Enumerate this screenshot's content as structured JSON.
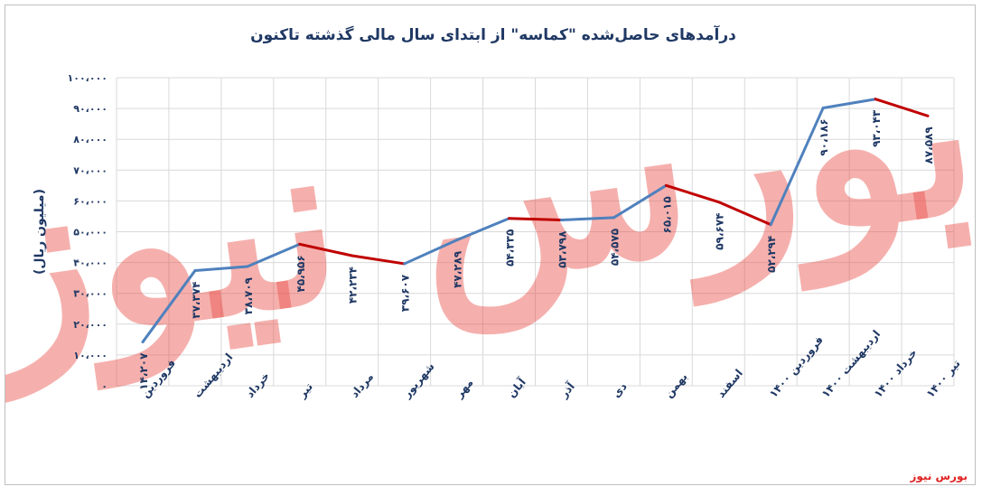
{
  "chart_data": {
    "type": "line",
    "title": "درآمدهای حاصل‌شده \"کماسه\" از ابتدای سال مالی گذشته تاکنون",
    "ylabel": "(میلیون ریال)",
    "xlabel": "",
    "ylim": [
      0,
      100000
    ],
    "yticks": [
      "۰",
      "۱۰،۰۰۰",
      "۲۰،۰۰۰",
      "۳۰،۰۰۰",
      "۴۰،۰۰۰",
      "۵۰،۰۰۰",
      "۶۰،۰۰۰",
      "۷۰،۰۰۰",
      "۸۰،۰۰۰",
      "۹۰،۰۰۰",
      "۱۰۰،۰۰۰"
    ],
    "grid": true,
    "categories": [
      "فروردین",
      "اردیبهشت",
      "خرداد",
      "تیر",
      "مرداد",
      "شهریور",
      "مهر",
      "آبان",
      "آذر",
      "دی",
      "بهمن",
      "اسفند",
      "فروردین ۱۴۰۰",
      "اردیبهشت ۱۴۰۰",
      "خرداد ۱۴۰۰",
      "تیر ۱۴۰۰"
    ],
    "values": [
      14207,
      37374,
      38709,
      45956,
      42234,
      39607,
      47289,
      54335,
      53798,
      54575,
      65015,
      59674,
      52294,
      90186,
      93043,
      87589
    ],
    "data_labels": [
      "۱۴،۲۰۷",
      "۳۷،۳۷۴",
      "۳۸،۷۰۹",
      "۴۵،۹۵۶",
      "۴۲،۲۳۴",
      "۳۹،۶۰۷",
      "۴۷،۲۸۹",
      "۵۴،۳۳۵",
      "۵۳،۷۹۸",
      "۵۴،۵۷۵",
      "۶۵،۰۱۵",
      "۵۹،۶۷۴",
      "۵۲،۲۹۴",
      "۹۰،۱۸۶",
      "۹۳،۰۴۳",
      "۸۷،۵۸۹"
    ],
    "colors": {
      "increase": "#4f81bd",
      "decrease": "#c00000",
      "axis_text": "#1f3864",
      "title": "#1f3864",
      "grid": "#d9d9d9"
    }
  },
  "watermark": {
    "text": "بورس نیوز",
    "color": "#e8504a"
  },
  "source": {
    "label": "بورس نیوز",
    "color": "#e02020"
  }
}
